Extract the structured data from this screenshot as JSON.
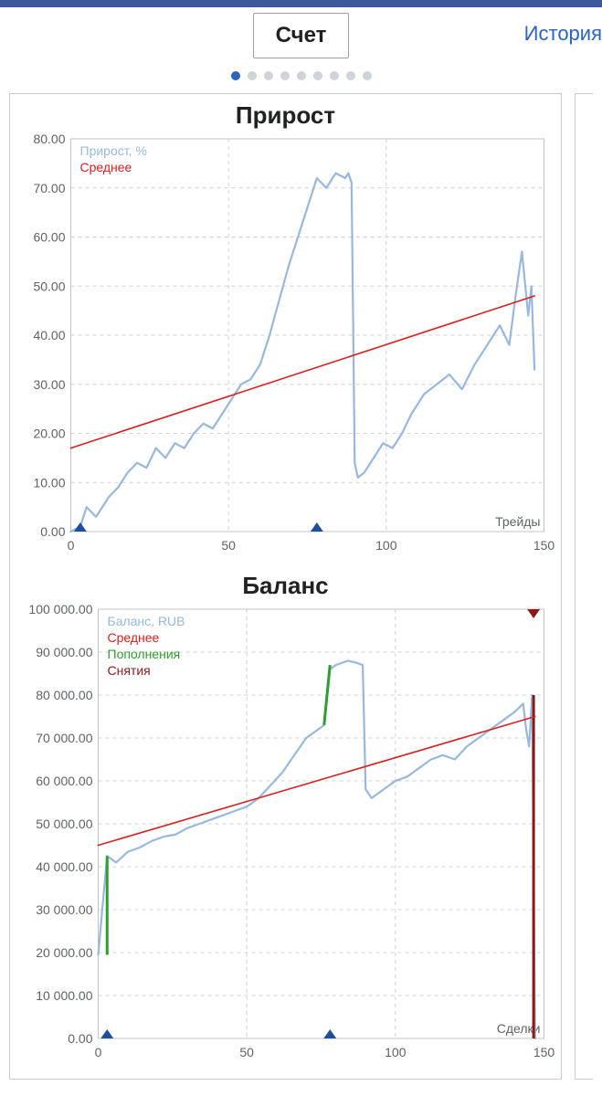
{
  "tabs": {
    "active_label": "Счет",
    "right_link": "История"
  },
  "carousel": {
    "count": 9,
    "active_index": 0
  },
  "panel": {
    "chart1": {
      "type": "line",
      "title": "Прирост",
      "x_axis_label": "Трейды",
      "xlim": [
        0,
        150
      ],
      "xticks": [
        0,
        50,
        100,
        150
      ],
      "ylim": [
        0,
        80
      ],
      "yticks": [
        0,
        10,
        20,
        30,
        40,
        50,
        60,
        70,
        80
      ],
      "ytick_labels": [
        "0.00",
        "10.00",
        "20.00",
        "30.00",
        "40.00",
        "50.00",
        "60.00",
        "70.00",
        "80.00"
      ],
      "grid_color": "#d0d3d8",
      "background_color": "#ffffff",
      "legend": [
        {
          "label": "Прирост, %",
          "color": "#99b8dd"
        },
        {
          "label": "Среднее",
          "color": "#d9201f"
        }
      ],
      "series_growth": {
        "color": "#99b8dd",
        "stroke_width": 2.2,
        "points": [
          [
            0,
            0
          ],
          [
            3,
            1
          ],
          [
            5,
            5
          ],
          [
            8,
            3
          ],
          [
            12,
            7
          ],
          [
            15,
            9
          ],
          [
            18,
            12
          ],
          [
            21,
            14
          ],
          [
            24,
            13
          ],
          [
            27,
            17
          ],
          [
            30,
            15
          ],
          [
            33,
            18
          ],
          [
            36,
            17
          ],
          [
            39,
            20
          ],
          [
            42,
            22
          ],
          [
            45,
            21
          ],
          [
            48,
            24
          ],
          [
            51,
            27
          ],
          [
            54,
            30
          ],
          [
            57,
            31
          ],
          [
            60,
            34
          ],
          [
            63,
            40
          ],
          [
            66,
            47
          ],
          [
            69,
            54
          ],
          [
            72,
            60
          ],
          [
            75,
            66
          ],
          [
            78,
            72
          ],
          [
            81,
            70
          ],
          [
            84,
            73
          ],
          [
            87,
            72
          ],
          [
            88,
            73
          ],
          [
            89,
            71
          ],
          [
            90,
            14
          ],
          [
            91,
            11
          ],
          [
            93,
            12
          ],
          [
            96,
            15
          ],
          [
            99,
            18
          ],
          [
            102,
            17
          ],
          [
            105,
            20
          ],
          [
            108,
            24
          ],
          [
            112,
            28
          ],
          [
            116,
            30
          ],
          [
            120,
            32
          ],
          [
            124,
            29
          ],
          [
            128,
            34
          ],
          [
            132,
            38
          ],
          [
            136,
            42
          ],
          [
            139,
            38
          ],
          [
            141,
            48
          ],
          [
            143,
            57
          ],
          [
            145,
            44
          ],
          [
            146,
            50
          ],
          [
            147,
            33
          ]
        ]
      },
      "series_avg": {
        "color": "#d9201f",
        "stroke_width": 1.6,
        "points": [
          [
            0,
            17
          ],
          [
            147,
            48
          ]
        ]
      },
      "markers_x": {
        "color": "#1f4f9b",
        "positions": [
          3,
          78
        ]
      }
    },
    "chart2": {
      "type": "line",
      "title": "Баланс",
      "x_axis_label": "Сделки",
      "xlim": [
        0,
        150
      ],
      "xticks": [
        0,
        50,
        100,
        150
      ],
      "ylim": [
        0,
        100000
      ],
      "yticks": [
        0,
        10000,
        20000,
        30000,
        40000,
        50000,
        60000,
        70000,
        80000,
        90000,
        100000
      ],
      "ytick_labels": [
        "0.00",
        "10 000.00",
        "20 000.00",
        "30 000.00",
        "40 000.00",
        "50 000.00",
        "60 000.00",
        "70 000.00",
        "80 000.00",
        "90 000.00",
        "100 000.00"
      ],
      "grid_color": "#d0d3d8",
      "background_color": "#ffffff",
      "legend": [
        {
          "label": "Баланс, RUB",
          "color": "#99b8dd"
        },
        {
          "label": "Среднее",
          "color": "#d9201f"
        },
        {
          "label": "Пополнения",
          "color": "#2e9e2e"
        },
        {
          "label": "Снятия",
          "color": "#8a1a1a"
        }
      ],
      "series_balance": {
        "color": "#99b8dd",
        "stroke_width": 2.2,
        "points": [
          [
            0,
            19500
          ],
          [
            3,
            42500
          ],
          [
            6,
            41000
          ],
          [
            10,
            43500
          ],
          [
            14,
            44500
          ],
          [
            18,
            46000
          ],
          [
            22,
            47000
          ],
          [
            26,
            47500
          ],
          [
            30,
            49000
          ],
          [
            34,
            50000
          ],
          [
            38,
            51000
          ],
          [
            42,
            52000
          ],
          [
            46,
            53000
          ],
          [
            50,
            54000
          ],
          [
            54,
            56000
          ],
          [
            58,
            59000
          ],
          [
            62,
            62000
          ],
          [
            66,
            66000
          ],
          [
            70,
            70000
          ],
          [
            74,
            72000
          ],
          [
            76,
            73000
          ],
          [
            78,
            86000
          ],
          [
            80,
            87000
          ],
          [
            84,
            88000
          ],
          [
            87,
            87500
          ],
          [
            89,
            87000
          ],
          [
            90,
            58000
          ],
          [
            92,
            56000
          ],
          [
            96,
            58000
          ],
          [
            100,
            60000
          ],
          [
            104,
            61000
          ],
          [
            108,
            63000
          ],
          [
            112,
            65000
          ],
          [
            116,
            66000
          ],
          [
            120,
            65000
          ],
          [
            124,
            68000
          ],
          [
            128,
            70000
          ],
          [
            132,
            72000
          ],
          [
            136,
            74000
          ],
          [
            140,
            76000
          ],
          [
            143,
            78000
          ],
          [
            144,
            72000
          ],
          [
            145,
            68000
          ],
          [
            146,
            80000
          ],
          [
            147,
            0
          ]
        ]
      },
      "series_avg": {
        "color": "#d9201f",
        "stroke_width": 1.6,
        "points": [
          [
            0,
            45000
          ],
          [
            147,
            75000
          ]
        ]
      },
      "series_deposit": {
        "color": "#2e9e2e",
        "stroke_width": 3,
        "segments": [
          [
            [
              3,
              19500
            ],
            [
              3,
              42500
            ]
          ],
          [
            [
              76,
              73000
            ],
            [
              78,
              87000
            ]
          ]
        ]
      },
      "series_withdraw": {
        "color": "#8a1a1a",
        "stroke_width": 3,
        "segments": [
          [
            [
              146.5,
              80000
            ],
            [
              146.5,
              0
            ]
          ]
        ]
      },
      "markers_x": {
        "color": "#1f4f9b",
        "positions": [
          3,
          78
        ]
      },
      "markers_top": {
        "color": "#8a1a1a",
        "positions": [
          146.5
        ]
      }
    }
  }
}
